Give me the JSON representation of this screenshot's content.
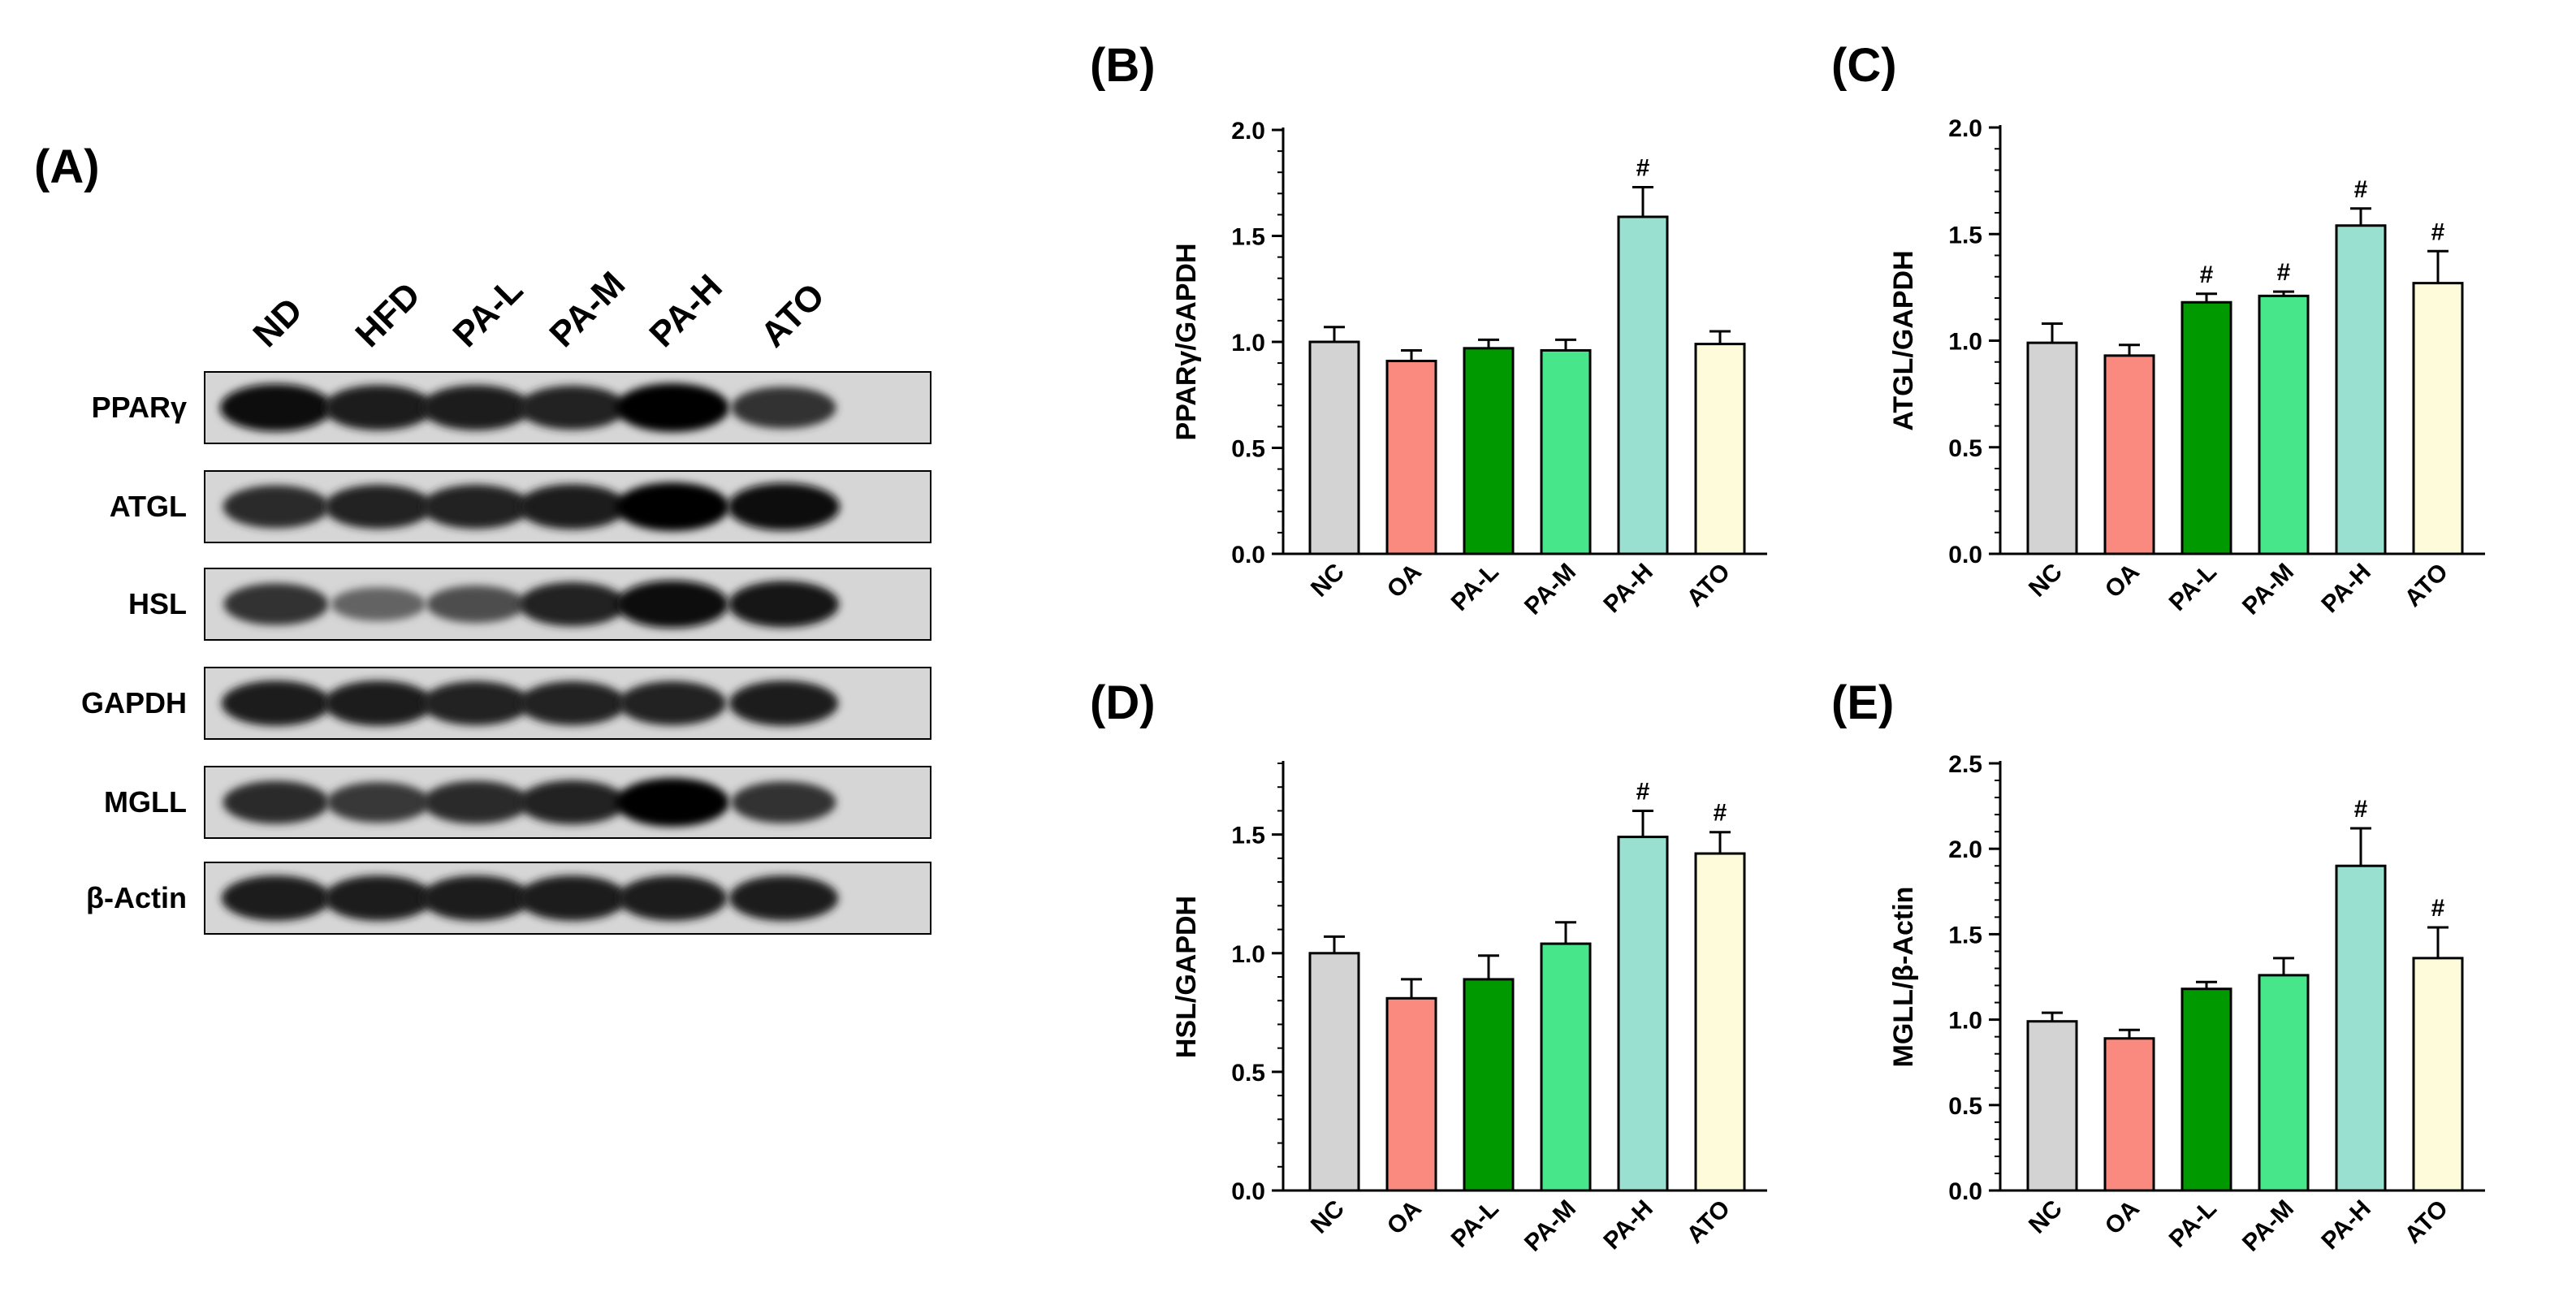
{
  "western_blot": {
    "panel_label": "(A)",
    "lanes": [
      "ND",
      "HFD",
      "PA-L",
      "PA-M",
      "PA-H",
      "ATO"
    ],
    "blots": [
      {
        "label": "PPARγ",
        "intensity": [
          0.95,
          0.85,
          0.85,
          0.8,
          1.0,
          0.7
        ]
      },
      {
        "label": "ATGL",
        "intensity": [
          0.75,
          0.8,
          0.8,
          0.85,
          1.0,
          0.95
        ]
      },
      {
        "label": "HSL",
        "intensity": [
          0.7,
          0.35,
          0.5,
          0.8,
          0.95,
          0.9
        ]
      },
      {
        "label": "GAPDH",
        "intensity": [
          0.85,
          0.85,
          0.8,
          0.8,
          0.8,
          0.85
        ]
      },
      {
        "label": "MGLL",
        "intensity": [
          0.75,
          0.65,
          0.75,
          0.8,
          1.0,
          0.7
        ]
      },
      {
        "label": "β-Actin",
        "intensity": [
          0.85,
          0.85,
          0.85,
          0.85,
          0.85,
          0.85
        ]
      }
    ]
  },
  "colors": {
    "NC": "#d3d3d3",
    "OA": "#fa8a80",
    "PA-L": "#009a00",
    "PA-M": "#48e68b",
    "PA-H": "#99e0d0",
    "ATO": "#fdfbd9"
  },
  "chart_data": [
    {
      "panel_label": "(B)",
      "type": "bar",
      "categories": [
        "NC",
        "OA",
        "PA-L",
        "PA-M",
        "PA-H",
        "ATO"
      ],
      "values": [
        1.0,
        0.91,
        0.97,
        0.96,
        1.59,
        0.99
      ],
      "errors": [
        0.07,
        0.05,
        0.04,
        0.05,
        0.14,
        0.06
      ],
      "significance": [
        "",
        "",
        "",
        "",
        "#",
        ""
      ],
      "ylabel": "PPARγ/GAPDH",
      "ylim": [
        0,
        2.0
      ],
      "yticks": [
        "0.0",
        "0.5",
        "1.0",
        "1.5",
        "2.0"
      ]
    },
    {
      "panel_label": "(C)",
      "type": "bar",
      "categories": [
        "NC",
        "OA",
        "PA-L",
        "PA-M",
        "PA-H",
        "ATO"
      ],
      "values": [
        0.99,
        0.93,
        1.18,
        1.21,
        1.54,
        1.27
      ],
      "errors": [
        0.09,
        0.05,
        0.04,
        0.02,
        0.08,
        0.15
      ],
      "significance": [
        "",
        "",
        "#",
        "#",
        "#",
        "#"
      ],
      "ylabel": "ATGL/GAPDH",
      "ylim": [
        0,
        2.0
      ],
      "yticks": [
        "0.0",
        "0.5",
        "1.0",
        "1.5",
        "2.0"
      ]
    },
    {
      "panel_label": "(D)",
      "type": "bar",
      "categories": [
        "NC",
        "OA",
        "PA-L",
        "PA-M",
        "PA-H",
        "ATO"
      ],
      "values": [
        1.0,
        0.81,
        0.89,
        1.04,
        1.49,
        1.42
      ],
      "errors": [
        0.07,
        0.08,
        0.1,
        0.09,
        0.11,
        0.09
      ],
      "significance": [
        "",
        "",
        "",
        "",
        "#",
        "#"
      ],
      "ylabel": "HSL/GAPDH",
      "ylim": [
        0,
        1.8
      ],
      "yticks": [
        "0.0",
        "0.5",
        "1.0",
        "1.5"
      ]
    },
    {
      "panel_label": "(E)",
      "type": "bar",
      "categories": [
        "NC",
        "OA",
        "PA-L",
        "PA-M",
        "PA-H",
        "ATO"
      ],
      "values": [
        0.99,
        0.89,
        1.18,
        1.26,
        1.9,
        1.36
      ],
      "errors": [
        0.05,
        0.05,
        0.04,
        0.1,
        0.22,
        0.18
      ],
      "significance": [
        "",
        "",
        "",
        "",
        "#",
        "#"
      ],
      "ylabel": "MGLL/β-Actin",
      "ylim": [
        0,
        2.5
      ],
      "yticks": [
        "0.0",
        "0.5",
        "1.0",
        "1.5",
        "2.0",
        "2.5"
      ]
    }
  ]
}
